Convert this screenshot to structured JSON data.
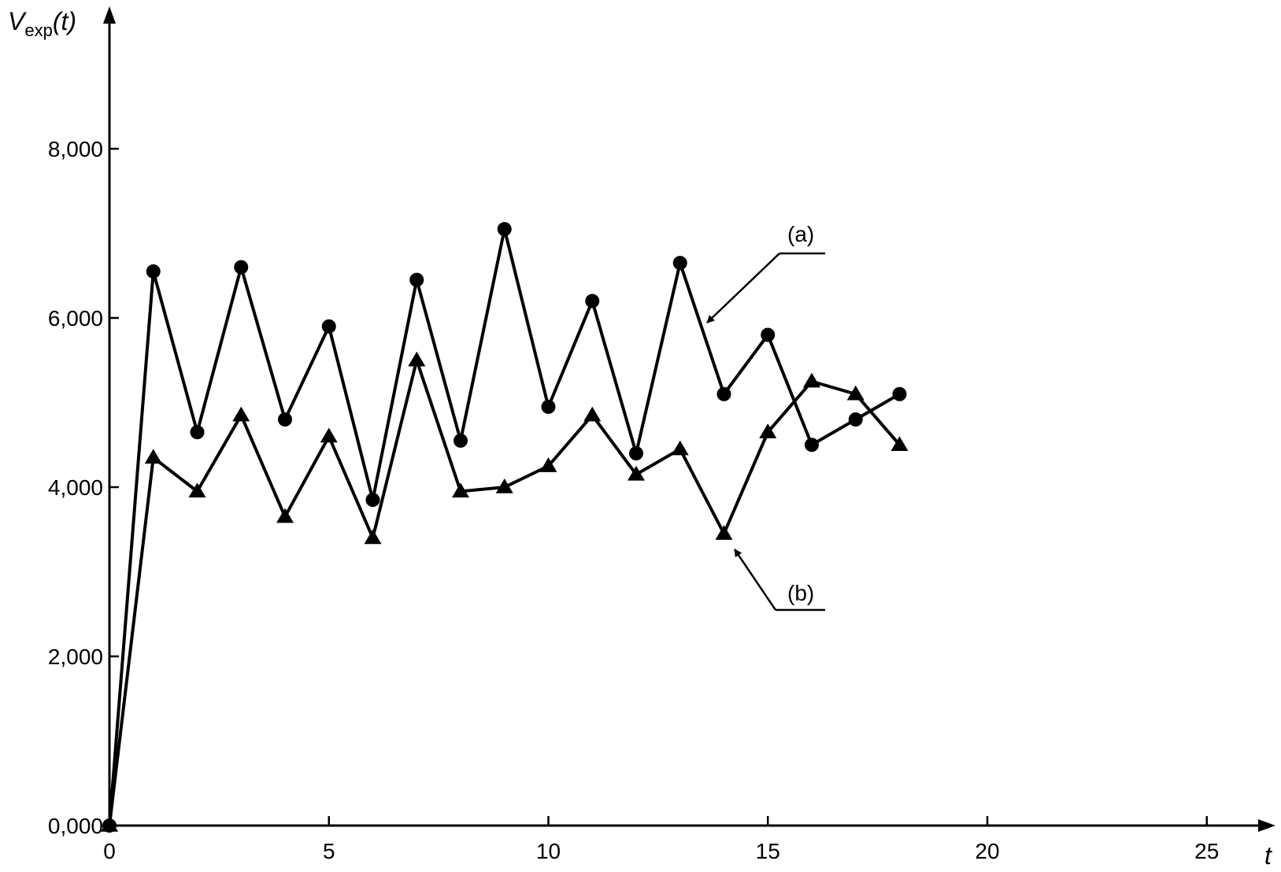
{
  "chart_data": {
    "type": "line",
    "title": "",
    "ylabel": {
      "main": "V",
      "sub": "exp",
      "suffix": "(t)"
    },
    "xlabel": "t",
    "xlim": [
      0,
      26
    ],
    "ylim": [
      0,
      9500
    ],
    "x_ticks": [
      0,
      5,
      10,
      15,
      20,
      25
    ],
    "x_tick_labels": [
      "0",
      "5",
      "10",
      "15",
      "20",
      "25"
    ],
    "y_ticks": [
      0,
      2000,
      4000,
      6000,
      8000
    ],
    "y_tick_labels": [
      "0,000",
      "2,000",
      "4,000",
      "6,000",
      "8,000"
    ],
    "grid": false,
    "legend": "none",
    "series": [
      {
        "name": "(a)",
        "marker": "circle",
        "x": [
          0,
          1,
          2,
          3,
          4,
          5,
          6,
          7,
          8,
          9,
          10,
          11,
          12,
          13,
          14,
          15,
          16,
          17,
          18
        ],
        "values": [
          0,
          6550,
          4650,
          6600,
          4800,
          5900,
          3850,
          6450,
          4550,
          7050,
          4950,
          6200,
          4400,
          6650,
          5100,
          5800,
          4500,
          4800,
          5100
        ]
      },
      {
        "name": "(b)",
        "marker": "triangle",
        "x": [
          0,
          1,
          2,
          3,
          4,
          5,
          6,
          7,
          8,
          9,
          10,
          11,
          12,
          13,
          14,
          15,
          16,
          17,
          18
        ],
        "values": [
          0,
          4350,
          3950,
          4850,
          3650,
          4600,
          3400,
          5500,
          3950,
          4000,
          4250,
          4850,
          4150,
          4450,
          3450,
          4650,
          5250,
          5100,
          4500
        ]
      }
    ]
  },
  "annotations": {
    "a_label": "(a)",
    "b_label": "(b)"
  }
}
